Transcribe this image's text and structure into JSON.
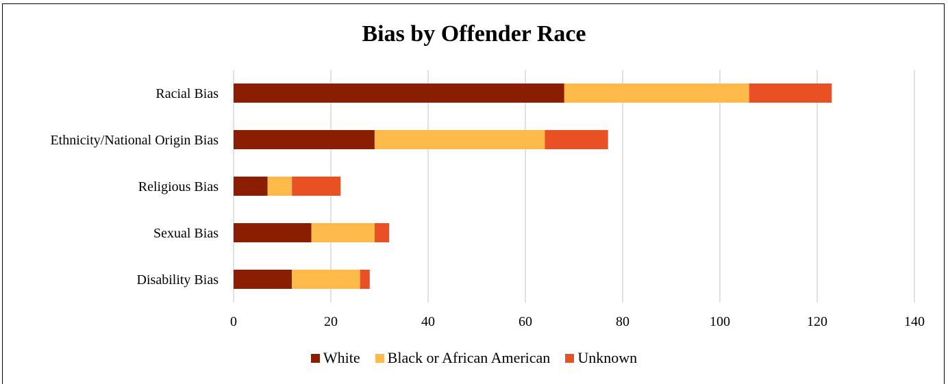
{
  "chart_data": {
    "type": "bar",
    "orientation": "horizontal",
    "stacked": true,
    "title": "Bias by Offender Race",
    "categories": [
      "Racial Bias",
      "Ethnicity/National Origin Bias",
      "Religious Bias",
      "Sexual Bias",
      "Disability Bias"
    ],
    "series": [
      {
        "name": "White",
        "color": "#8b1e00",
        "values": [
          68,
          29,
          7,
          16,
          12
        ]
      },
      {
        "name": "Black or African American",
        "color": "#ffbb4a",
        "values": [
          38,
          35,
          5,
          13,
          14
        ]
      },
      {
        "name": "Unknown",
        "color": "#e95024",
        "values": [
          17,
          13,
          10,
          3,
          2
        ]
      }
    ],
    "xlim": [
      0,
      140
    ],
    "xticks": [
      0,
      20,
      40,
      60,
      80,
      100,
      120,
      140
    ],
    "grid": true,
    "legend_position": "bottom"
  }
}
